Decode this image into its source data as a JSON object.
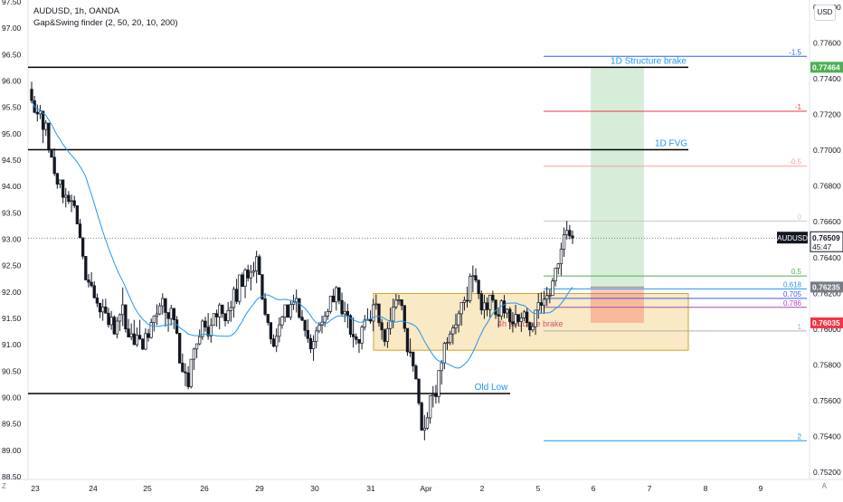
{
  "header": {
    "symbol_line": "AUDUSD, 1h, OANDA",
    "indicator_line": "Gap&Swing finder (2, 50, 20, 10, 200)"
  },
  "currency_badge": "USD",
  "corner_left": "Z",
  "corner_right": "A",
  "chart_data": {
    "type": "candlestick",
    "symbol": "AUDUSD",
    "timeframe": "1h",
    "exchange": "OANDA",
    "left_axis": {
      "ticks": [
        "97.00",
        "96.50",
        "96.00",
        "95.50",
        "95.00",
        "94.50",
        "94.00",
        "93.50",
        "93.00",
        "92.50",
        "92.00",
        "91.50",
        "91.00",
        "90.50",
        "90.00",
        "89.50",
        "89.00",
        "88.50"
      ],
      "top_partial_tick": "97.50",
      "range": [
        88.5,
        97.5
      ]
    },
    "right_axis": {
      "ticks": [
        "0.77800",
        "0.77600",
        "0.77400",
        "0.77200",
        "0.77000",
        "0.76800",
        "0.76600",
        "0.76400",
        "0.76200",
        "0.76000",
        "0.75800",
        "0.75600",
        "0.75400",
        "0.75200"
      ],
      "range": [
        0.7516,
        0.7784
      ]
    },
    "x_ticks": [
      "23",
      "24",
      "25",
      "26",
      "29",
      "30",
      "31",
      "Apr",
      "2",
      "5",
      "6",
      "7",
      "8",
      "9"
    ],
    "price_labels": {
      "last_symbol": "AUDUSD",
      "last_price": "0.76509",
      "countdown": "45:47",
      "target_price": "0.77464",
      "entry_price": "0.76235",
      "stop_price": "0.76035"
    },
    "fib_levels": [
      {
        "label": "-1.5",
        "color": "#2962ff",
        "price": 0.77525
      },
      {
        "label": "-1",
        "color": "#f23645",
        "price": 0.77218
      },
      {
        "label": "-0.5",
        "color": "#f7a1a1",
        "price": 0.76911
      },
      {
        "label": "0",
        "color": "#c8c8c8",
        "price": 0.76604
      },
      {
        "label": "0.5",
        "color": "#4caf50",
        "price": 0.76297
      },
      {
        "label": "0.618",
        "color": "#2196f3",
        "price": 0.76225
      },
      {
        "label": "0.705",
        "color": "#3d5afe",
        "price": 0.76172
      },
      {
        "label": "0.786",
        "color": "#ab47bc",
        "price": 0.76122
      },
      {
        "label": "1",
        "color": "#b0b0b0",
        "price": 0.7599
      },
      {
        "label": "2",
        "color": "#2196f3",
        "price": 0.75376
      }
    ],
    "horizontal_lines": [
      {
        "label": "1D Structure brake",
        "price": 0.77464,
        "color": "#000000"
      },
      {
        "label": "1D FVG",
        "price": 0.77003,
        "color": "#000000"
      },
      {
        "label": "Old Low",
        "price": 0.7564,
        "color": "#000000"
      }
    ],
    "zone": {
      "label": "4h structure brake",
      "top": 0.76199,
      "bottom": 0.75882,
      "color": "#f7e2b0"
    },
    "position": {
      "target": 0.77464,
      "entry": 0.76235,
      "stop": 0.76035
    },
    "moving_average": {
      "color": "#2196f3"
    },
    "candles_ohlc": [
      [
        0.77341,
        0.77383,
        0.77262,
        0.77277
      ],
      [
        0.77277,
        0.77304,
        0.77207,
        0.77212
      ],
      [
        0.77212,
        0.77256,
        0.77161,
        0.77203
      ],
      [
        0.77203,
        0.77253,
        0.77174,
        0.77219
      ],
      [
        0.77219,
        0.77219,
        0.7704,
        0.77116
      ],
      [
        0.77116,
        0.77168,
        0.7708,
        0.77152
      ],
      [
        0.77152,
        0.77152,
        0.76986,
        0.77006
      ],
      [
        0.77006,
        0.77006,
        0.76961,
        0.76961
      ],
      [
        0.76961,
        0.77011,
        0.76856,
        0.7687
      ],
      [
        0.7687,
        0.76874,
        0.76785,
        0.7681
      ],
      [
        0.7681,
        0.76834,
        0.76788,
        0.76834
      ],
      [
        0.76834,
        0.76834,
        0.76704,
        0.76737
      ],
      [
        0.76737,
        0.76789,
        0.7668,
        0.76748
      ],
      [
        0.76748,
        0.76772,
        0.76699,
        0.76714
      ],
      [
        0.76714,
        0.76752,
        0.76654,
        0.76718
      ],
      [
        0.76718,
        0.76745,
        0.76676,
        0.7669
      ],
      [
        0.7669,
        0.7669,
        0.76588,
        0.76588
      ],
      [
        0.76588,
        0.76616,
        0.76511,
        0.76511
      ],
      [
        0.76511,
        0.76511,
        0.76391,
        0.76407
      ],
      [
        0.76407,
        0.76407,
        0.76274,
        0.76275
      ],
      [
        0.76275,
        0.76308,
        0.76233,
        0.76262
      ],
      [
        0.76262,
        0.76318,
        0.76233,
        0.76243
      ],
      [
        0.76243,
        0.76268,
        0.76172,
        0.76175
      ],
      [
        0.76175,
        0.76199,
        0.76123,
        0.76145
      ],
      [
        0.76145,
        0.76145,
        0.76062,
        0.76096
      ],
      [
        0.76096,
        0.76168,
        0.76047,
        0.76124
      ],
      [
        0.76124,
        0.7617,
        0.76089,
        0.76089
      ],
      [
        0.76089,
        0.76119,
        0.76008,
        0.76025
      ],
      [
        0.76025,
        0.76102,
        0.75996,
        0.76067
      ],
      [
        0.76067,
        0.76077,
        0.75968,
        0.75973
      ],
      [
        0.75973,
        0.76068,
        0.75948,
        0.76045
      ],
      [
        0.76045,
        0.76088,
        0.75989,
        0.76081
      ],
      [
        0.76081,
        0.76233,
        0.76017,
        0.76136
      ],
      [
        0.76136,
        0.76136,
        0.75981,
        0.76001
      ],
      [
        0.76001,
        0.76057,
        0.75955,
        0.75956
      ],
      [
        0.75956,
        0.76032,
        0.75938,
        0.75974
      ],
      [
        0.75974,
        0.76052,
        0.75913,
        0.75913
      ],
      [
        0.75913,
        0.76009,
        0.75901,
        0.75966
      ],
      [
        0.75966,
        0.76052,
        0.75941,
        0.75944
      ],
      [
        0.75944,
        0.7595,
        0.75883,
        0.75888
      ],
      [
        0.75888,
        0.76005,
        0.75882,
        0.75975
      ],
      [
        0.75975,
        0.76001,
        0.7593,
        0.75953
      ],
      [
        0.75953,
        0.76059,
        0.75947,
        0.76037
      ],
      [
        0.76037,
        0.76077,
        0.75987,
        0.76074
      ],
      [
        0.76074,
        0.76139,
        0.76023,
        0.76085
      ],
      [
        0.76085,
        0.76147,
        0.76079,
        0.7613
      ],
      [
        0.7613,
        0.762,
        0.76082,
        0.76171
      ],
      [
        0.76171,
        0.76171,
        0.76013,
        0.76093
      ],
      [
        0.76093,
        0.76093,
        0.75985,
        0.76059
      ],
      [
        0.76059,
        0.76136,
        0.76021,
        0.76116
      ],
      [
        0.76116,
        0.76116,
        0.76,
        0.76052
      ],
      [
        0.76052,
        0.76073,
        0.75971,
        0.75977
      ],
      [
        0.75977,
        0.75977,
        0.7581,
        0.7581
      ],
      [
        0.7581,
        0.75863,
        0.75761,
        0.75761
      ],
      [
        0.75761,
        0.75809,
        0.75681,
        0.75755
      ],
      [
        0.75755,
        0.75793,
        0.75664,
        0.75678
      ],
      [
        0.75678,
        0.75833,
        0.75668,
        0.75832
      ],
      [
        0.75832,
        0.75896,
        0.75772,
        0.75889
      ],
      [
        0.75889,
        0.75918,
        0.75838,
        0.75918
      ],
      [
        0.75918,
        0.75998,
        0.7591,
        0.75958
      ],
      [
        0.75958,
        0.76055,
        0.7594,
        0.76045
      ],
      [
        0.76045,
        0.76069,
        0.75986,
        0.76011
      ],
      [
        0.76011,
        0.7609,
        0.75941,
        0.75962
      ],
      [
        0.75962,
        0.76061,
        0.75924,
        0.76021
      ],
      [
        0.76021,
        0.76087,
        0.76019,
        0.76087
      ],
      [
        0.76087,
        0.76109,
        0.76014,
        0.76068
      ],
      [
        0.76068,
        0.76147,
        0.75999,
        0.76135
      ],
      [
        0.76135,
        0.76136,
        0.76062,
        0.76087
      ],
      [
        0.76087,
        0.76088,
        0.76015,
        0.76047
      ],
      [
        0.76047,
        0.76152,
        0.7603,
        0.76104
      ],
      [
        0.76104,
        0.76159,
        0.76041,
        0.76121
      ],
      [
        0.76121,
        0.76238,
        0.76065,
        0.76223
      ],
      [
        0.76223,
        0.76281,
        0.7614,
        0.76155
      ],
      [
        0.76155,
        0.76303,
        0.76137,
        0.76303
      ],
      [
        0.76303,
        0.76316,
        0.76236,
        0.76239
      ],
      [
        0.76239,
        0.76341,
        0.76173,
        0.76331
      ],
      [
        0.76331,
        0.7636,
        0.76267,
        0.76286
      ],
      [
        0.76286,
        0.76359,
        0.76216,
        0.76318
      ],
      [
        0.76318,
        0.76376,
        0.76293,
        0.76325
      ],
      [
        0.76325,
        0.76438,
        0.76257,
        0.76405
      ],
      [
        0.76405,
        0.76418,
        0.76303,
        0.76305
      ],
      [
        0.76305,
        0.76305,
        0.76161,
        0.76169
      ],
      [
        0.76169,
        0.76201,
        0.76073,
        0.76083
      ],
      [
        0.76083,
        0.76083,
        0.76021,
        0.76037
      ],
      [
        0.76037,
        0.76037,
        0.75917,
        0.75945
      ],
      [
        0.75945,
        0.75971,
        0.75898,
        0.75904
      ],
      [
        0.75904,
        0.76004,
        0.75872,
        0.7596
      ],
      [
        0.7596,
        0.76066,
        0.75926,
        0.76024
      ],
      [
        0.76024,
        0.76075,
        0.76002,
        0.76068
      ],
      [
        0.76068,
        0.76136,
        0.76039,
        0.76136
      ],
      [
        0.76136,
        0.76136,
        0.76066,
        0.76066
      ],
      [
        0.76066,
        0.76162,
        0.76051,
        0.76138
      ],
      [
        0.76138,
        0.76193,
        0.76107,
        0.76151
      ],
      [
        0.76151,
        0.76222,
        0.76093,
        0.76171
      ],
      [
        0.76171,
        0.76171,
        0.76057,
        0.76067
      ],
      [
        0.76067,
        0.76107,
        0.76045,
        0.7605
      ],
      [
        0.7605,
        0.7605,
        0.75958,
        0.75993
      ],
      [
        0.75993,
        0.76055,
        0.75924,
        0.75948
      ],
      [
        0.75948,
        0.75971,
        0.75866,
        0.7589
      ],
      [
        0.7589,
        0.75966,
        0.75823,
        0.75931
      ],
      [
        0.75931,
        0.76014,
        0.75893,
        0.7599
      ],
      [
        0.7599,
        0.76039,
        0.75978,
        0.76022
      ],
      [
        0.76022,
        0.76075,
        0.75976,
        0.76039
      ],
      [
        0.76039,
        0.76099,
        0.76012,
        0.76073
      ],
      [
        0.76073,
        0.76114,
        0.76051,
        0.76099
      ],
      [
        0.76099,
        0.76185,
        0.76087,
        0.76185
      ],
      [
        0.76185,
        0.76226,
        0.76152,
        0.76152
      ],
      [
        0.76152,
        0.76241,
        0.76104,
        0.76232
      ],
      [
        0.76232,
        0.76232,
        0.76139,
        0.7616
      ],
      [
        0.7616,
        0.76204,
        0.76076,
        0.76085
      ],
      [
        0.76085,
        0.76153,
        0.76039,
        0.76099
      ],
      [
        0.76099,
        0.76142,
        0.76006,
        0.76076
      ],
      [
        0.76076,
        0.76084,
        0.75954,
        0.75971
      ],
      [
        0.75971,
        0.76066,
        0.75897,
        0.75957
      ],
      [
        0.75957,
        0.75976,
        0.75913,
        0.75942
      ],
      [
        0.75942,
        0.75942,
        0.75867,
        0.75922
      ],
      [
        0.75922,
        0.76023,
        0.75887,
        0.76011
      ],
      [
        0.76011,
        0.7608,
        0.75993,
        0.76051
      ],
      [
        0.76051,
        0.76116,
        0.7605,
        0.76054
      ],
      [
        0.76054,
        0.76105,
        0.7603,
        0.76045
      ],
      [
        0.76045,
        0.76169,
        0.75988,
        0.76136
      ],
      [
        0.76136,
        0.76194,
        0.76109,
        0.76141
      ],
      [
        0.76141,
        0.76141,
        0.76014,
        0.76036
      ],
      [
        0.76036,
        0.76057,
        0.75941,
        0.75996
      ],
      [
        0.75996,
        0.76003,
        0.75905,
        0.75931
      ],
      [
        0.75931,
        0.7604,
        0.75895,
        0.76003
      ],
      [
        0.76003,
        0.7612,
        0.75969,
        0.76045
      ],
      [
        0.76045,
        0.76171,
        0.76005,
        0.76124
      ],
      [
        0.76124,
        0.76197,
        0.7611,
        0.76162
      ],
      [
        0.76162,
        0.76192,
        0.76135,
        0.76164
      ],
      [
        0.76164,
        0.76166,
        0.76105,
        0.76132
      ],
      [
        0.76132,
        0.76132,
        0.75984,
        0.76004
      ],
      [
        0.76004,
        0.76004,
        0.75851,
        0.75873
      ],
      [
        0.75873,
        0.75948,
        0.75843,
        0.75872
      ],
      [
        0.75872,
        0.75874,
        0.75762,
        0.75794
      ],
      [
        0.75794,
        0.75804,
        0.7572,
        0.75721
      ],
      [
        0.75721,
        0.75723,
        0.75574,
        0.75587
      ],
      [
        0.75587,
        0.75595,
        0.75434,
        0.75435
      ],
      [
        0.75435,
        0.75519,
        0.75379,
        0.75446
      ],
      [
        0.75446,
        0.75536,
        0.75437,
        0.75504
      ],
      [
        0.75504,
        0.75629,
        0.75471,
        0.75627
      ],
      [
        0.75627,
        0.75682,
        0.75562,
        0.75634
      ],
      [
        0.75634,
        0.75688,
        0.75584,
        0.75623
      ],
      [
        0.75623,
        0.75771,
        0.75586,
        0.75768
      ],
      [
        0.75768,
        0.75827,
        0.7569,
        0.75812
      ],
      [
        0.75812,
        0.75929,
        0.75776,
        0.75921
      ],
      [
        0.75921,
        0.75955,
        0.75884,
        0.75925
      ],
      [
        0.75925,
        0.75991,
        0.75911,
        0.75973
      ],
      [
        0.75973,
        0.76024,
        0.75914,
        0.76007
      ],
      [
        0.76007,
        0.76086,
        0.75972,
        0.76024
      ],
      [
        0.76024,
        0.76104,
        0.75981,
        0.76086
      ],
      [
        0.76086,
        0.7615,
        0.76019,
        0.76149
      ],
      [
        0.76149,
        0.76182,
        0.76104,
        0.76161
      ],
      [
        0.76161,
        0.76238,
        0.7612,
        0.76159
      ],
      [
        0.76159,
        0.76311,
        0.76145,
        0.76294
      ],
      [
        0.76294,
        0.76356,
        0.76206,
        0.76299
      ],
      [
        0.76299,
        0.7634,
        0.7626,
        0.76274
      ],
      [
        0.76274,
        0.76274,
        0.76168,
        0.76198
      ],
      [
        0.76198,
        0.76216,
        0.76081,
        0.76107
      ],
      [
        0.76107,
        0.76192,
        0.76057,
        0.76147
      ],
      [
        0.76147,
        0.76178,
        0.76072,
        0.76109
      ],
      [
        0.76109,
        0.76191,
        0.76064,
        0.7619
      ],
      [
        0.7619,
        0.76215,
        0.76149,
        0.76163
      ],
      [
        0.76163,
        0.76163,
        0.76057,
        0.76081
      ],
      [
        0.76081,
        0.76122,
        0.76009,
        0.76073
      ],
      [
        0.76073,
        0.76166,
        0.76052,
        0.76158
      ],
      [
        0.76158,
        0.76191,
        0.76061,
        0.7609
      ],
      [
        0.7609,
        0.76116,
        0.76061,
        0.76111
      ],
      [
        0.76111,
        0.76124,
        0.75999,
        0.76041
      ],
      [
        0.76041,
        0.76095,
        0.75981,
        0.7603
      ],
      [
        0.7603,
        0.76136,
        0.76007,
        0.76082
      ],
      [
        0.76082,
        0.76082,
        0.76015,
        0.76042
      ],
      [
        0.76042,
        0.76092,
        0.75985,
        0.76063
      ],
      [
        0.76063,
        0.76107,
        0.76044,
        0.76096
      ],
      [
        0.76096,
        0.76121,
        0.76011,
        0.76037
      ],
      [
        0.76037,
        0.76042,
        0.7596,
        0.75996
      ],
      [
        0.75996,
        0.76035,
        0.75983,
        0.76014
      ],
      [
        0.76014,
        0.76106,
        0.75968,
        0.76106
      ],
      [
        0.76106,
        0.76202,
        0.76058,
        0.76148
      ],
      [
        0.76148,
        0.76206,
        0.76091,
        0.76133
      ],
      [
        0.76133,
        0.76215,
        0.76085,
        0.76167
      ],
      [
        0.76167,
        0.76236,
        0.76128,
        0.76188
      ],
      [
        0.76188,
        0.76223,
        0.76145,
        0.76188
      ],
      [
        0.76188,
        0.76287,
        0.76186,
        0.76269
      ],
      [
        0.76269,
        0.76344,
        0.76239,
        0.76341
      ],
      [
        0.76341,
        0.76369,
        0.76306,
        0.76365
      ],
      [
        0.76365,
        0.76483,
        0.763,
        0.76447
      ],
      [
        0.76447,
        0.76568,
        0.76404,
        0.76527
      ],
      [
        0.76527,
        0.76605,
        0.76501,
        0.76552
      ],
      [
        0.76552,
        0.76582,
        0.76502,
        0.76521
      ],
      [
        0.76521,
        0.76551,
        0.76476,
        0.76509
      ]
    ]
  }
}
